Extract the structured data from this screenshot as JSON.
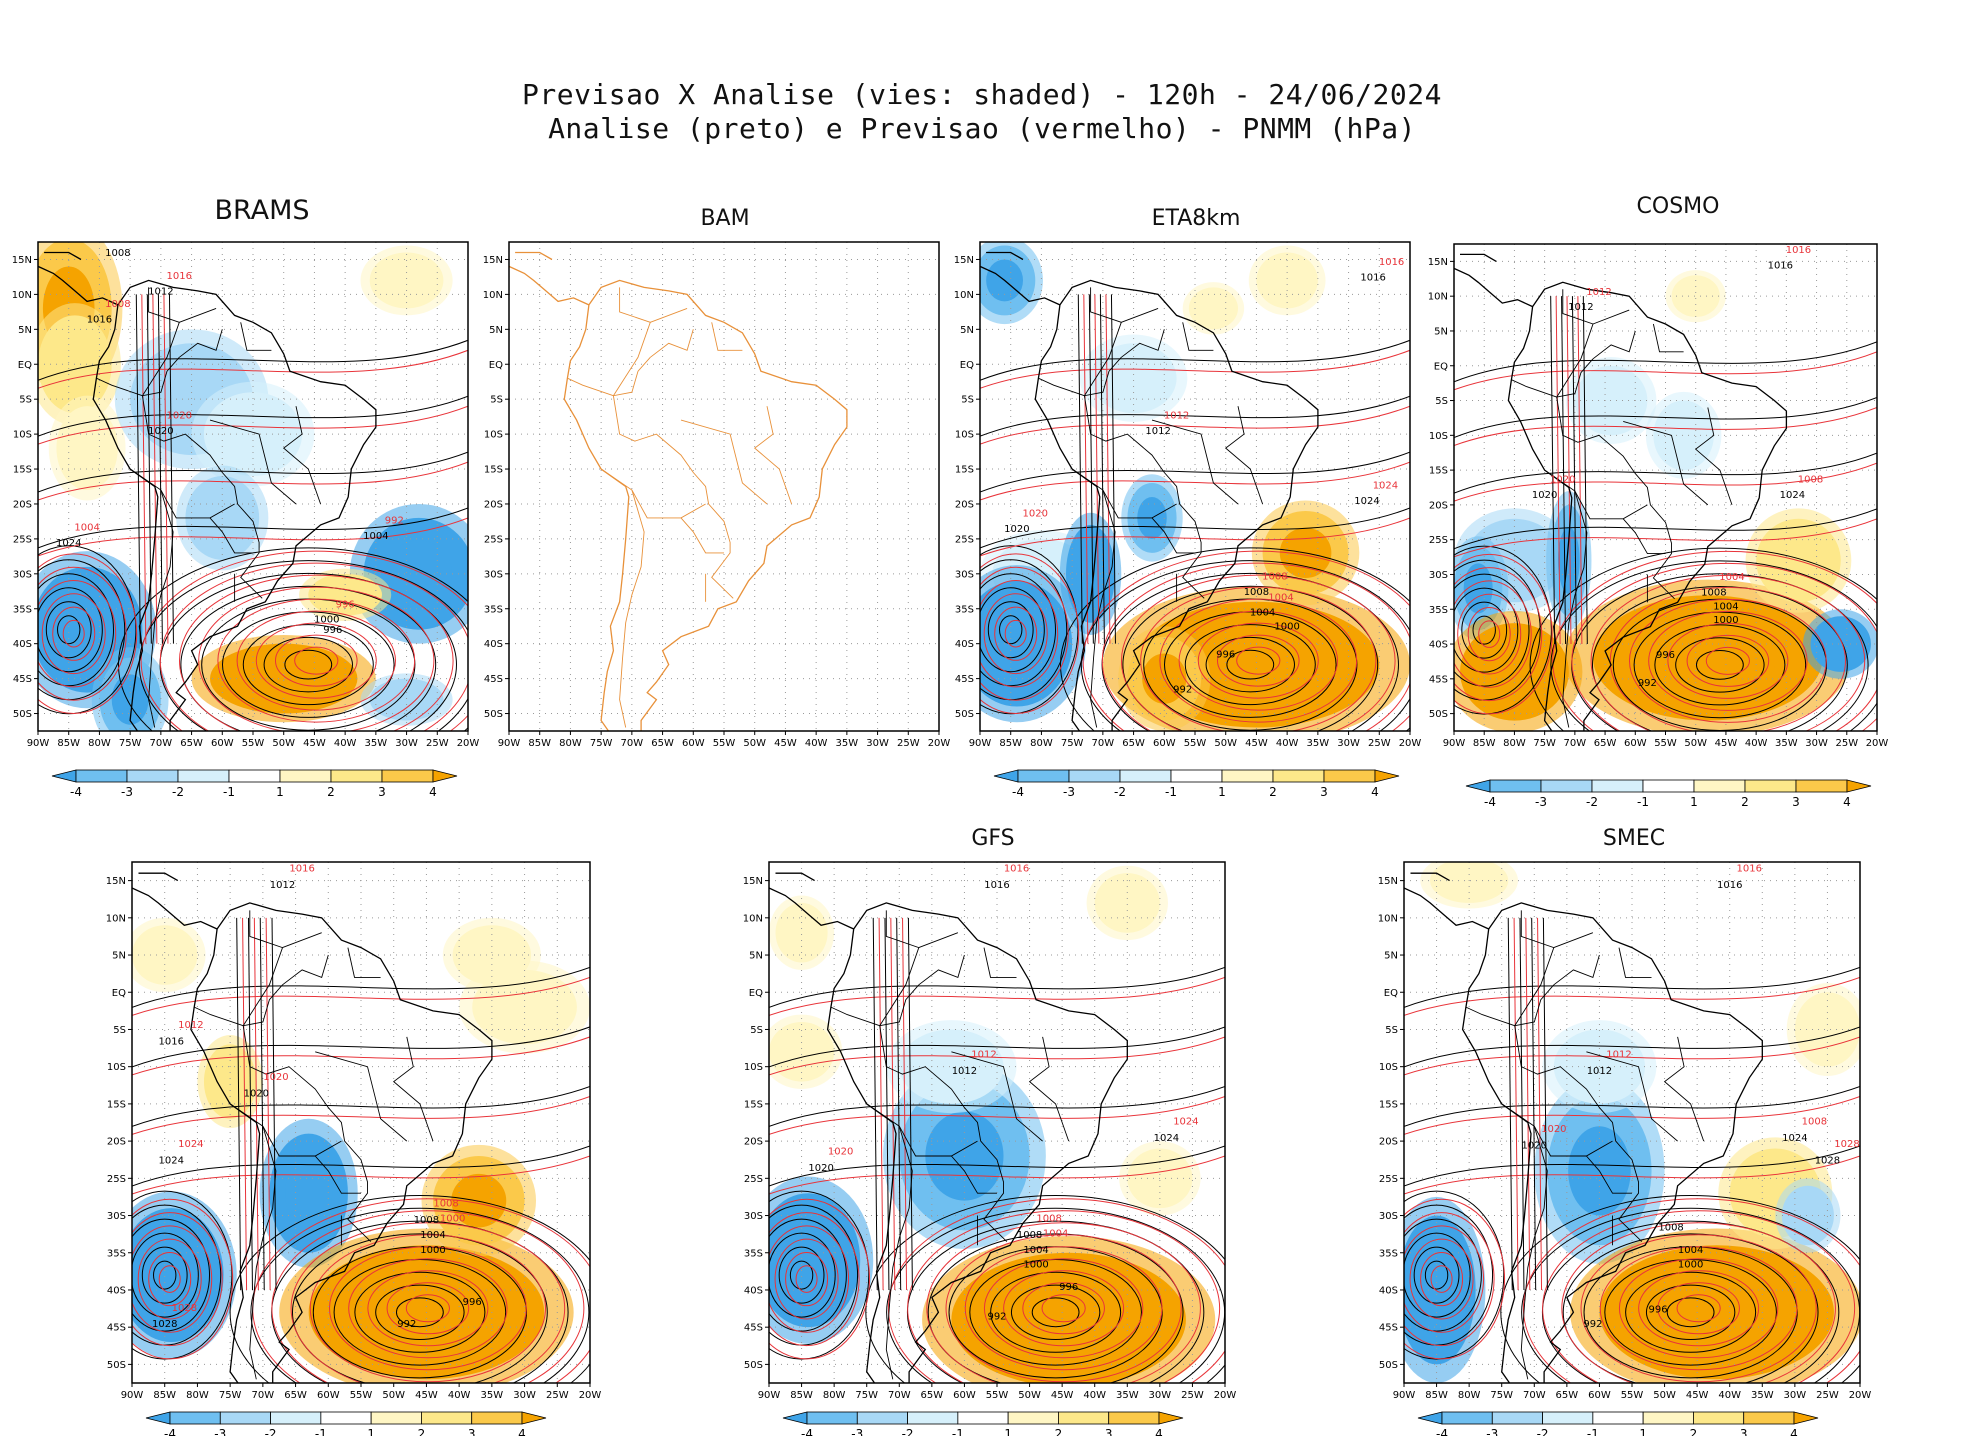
{
  "title": {
    "line1": "Previsao X Analise (vies: shaded) - 120h - 24/06/2024",
    "line2": "Analise (preto) e Previsao (vermelho) - PNMM (hPa)"
  },
  "colors": {
    "neg4": "#3fa4e8",
    "neg3": "#6fbff0",
    "neg2": "#a8d8f6",
    "neg1": "#d6f0fb",
    "pos1": "#fff6c4",
    "pos2": "#fde88a",
    "pos3": "#fbc94a",
    "pos4": "#f5a300",
    "land": "#000000",
    "analysis": "#000000",
    "forecast": "#e8343a",
    "bam_map": "#e8913a"
  },
  "axes": {
    "lon_labels": [
      "90W",
      "85W",
      "80W",
      "75W",
      "70W",
      "65W",
      "60W",
      "55W",
      "50W",
      "45W",
      "40W",
      "35W",
      "30W",
      "25W",
      "20W"
    ],
    "lat_labels": [
      "15N",
      "10N",
      "5N",
      "EQ",
      "5S",
      "10S",
      "15S",
      "20S",
      "25S",
      "30S",
      "35S",
      "40S",
      "45S",
      "50S"
    ]
  },
  "colorbar_labels": [
    "-4",
    "-3",
    "-2",
    "-1",
    "1",
    "2",
    "3",
    "4"
  ],
  "chart_data": [
    {
      "type": "heatmap",
      "title": "BRAMS",
      "variable": "PNMM bias (hPa)",
      "isobars_analysis": [
        "1008",
        "1012",
        "1016",
        "1020",
        "1024",
        "1004",
        "1000",
        "996"
      ],
      "isobars_forecast": [
        "1012",
        "1016",
        "1008",
        "1020",
        "1004",
        "992",
        "996"
      ]
    },
    {
      "type": "heatmap",
      "title": "BAM",
      "variable": "PNMM bias (hPa)",
      "isobars_analysis": [],
      "isobars_forecast": []
    },
    {
      "type": "heatmap",
      "title": "ETA8km",
      "variable": "PNMM bias (hPa)",
      "isobars_analysis": [
        "1016",
        "1012",
        "1020",
        "1024",
        "1008",
        "1004",
        "1000",
        "996",
        "992"
      ],
      "isobars_forecast": [
        "1016",
        "1012",
        "1020",
        "1024",
        "1008",
        "1004"
      ]
    },
    {
      "type": "heatmap",
      "title": "COSMO",
      "variable": "PNMM bias (hPa)",
      "isobars_analysis": [
        "1016",
        "1012",
        "1020",
        "1024",
        "1008",
        "1004",
        "1000",
        "996",
        "992"
      ],
      "isobars_forecast": [
        "1016",
        "1012",
        "1020",
        "1008",
        "1004"
      ]
    },
    {
      "type": "heatmap",
      "title": "",
      "variable": "PNMM bias (hPa)",
      "isobars_analysis": [
        "1012",
        "1016",
        "1020",
        "1024",
        "1028",
        "1008",
        "1004",
        "1000",
        "996",
        "992"
      ],
      "isobars_forecast": [
        "1016",
        "1012",
        "1020",
        "1024",
        "1028",
        "1008",
        "1000"
      ]
    },
    {
      "type": "heatmap",
      "title": "GFS",
      "variable": "PNMM bias (hPa)",
      "isobars_analysis": [
        "1016",
        "1012",
        "1020",
        "1024",
        "1008",
        "1004",
        "1000",
        "996",
        "992"
      ],
      "isobars_forecast": [
        "1016",
        "1012",
        "1020",
        "1024",
        "1008",
        "1004"
      ]
    },
    {
      "type": "heatmap",
      "title": "SMEC",
      "variable": "PNMM bias (hPa)",
      "isobars_analysis": [
        "1016",
        "1012",
        "1020",
        "1024",
        "1028",
        "1008",
        "1004",
        "1000",
        "996",
        "992"
      ],
      "isobars_forecast": [
        "1016",
        "1012",
        "1020",
        "1008",
        "1028"
      ]
    }
  ]
}
